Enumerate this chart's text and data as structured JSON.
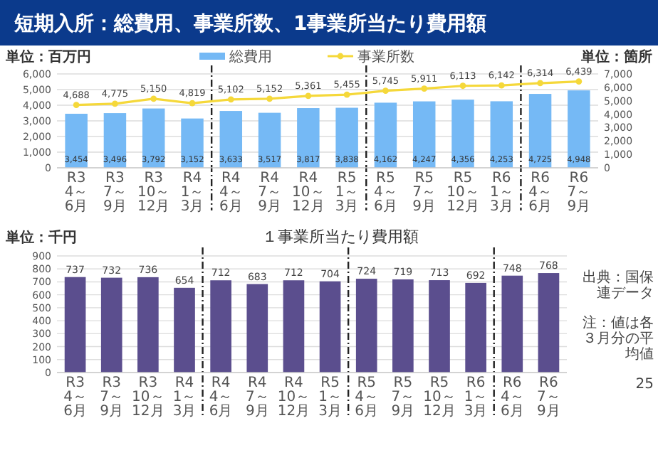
{
  "chart_data": [
    {
      "type": "bar",
      "title": "短期入所：総費用、事業所数、1事業所当たり費用額",
      "ylabel": "単位：百万円",
      "y2label": "単位：箇所",
      "categories": [
        "R3\n4～6月",
        "R3\n7～9月",
        "R3\n10～12月",
        "R4\n1～3月",
        "R4\n4～6月",
        "R4\n7～9月",
        "R4\n10～12月",
        "R5\n1～3月",
        "R5\n4～6月",
        "R5\n7～9月",
        "R5\n10～12月",
        "R6\n1～3月",
        "R6\n4～6月",
        "R6\n7～9月"
      ],
      "series": [
        {
          "name": "総費用",
          "color": "#75b9f5",
          "values": [
            3454,
            3496,
            3792,
            3152,
            3633,
            3517,
            3817,
            3838,
            4162,
            4247,
            4356,
            4253,
            4725,
            4948
          ],
          "value_labels": [
            "3,454",
            "3,496",
            "3,792",
            "3,152",
            "3,633",
            "3,517",
            "3,817",
            "3,838",
            "4,162",
            "4,247",
            "4,356",
            "4,253",
            "4,725",
            "4,948"
          ]
        },
        {
          "name": "事業所数",
          "type": "line",
          "axis": "y2",
          "color": "#f5d83a",
          "values": [
            4688,
            4775,
            5150,
            4819,
            5102,
            5152,
            5361,
            5455,
            5745,
            5911,
            6113,
            6142,
            6314,
            6439
          ],
          "value_labels": [
            "4,688",
            "4,775",
            "5,150",
            "4,819",
            "5,102",
            "5,152",
            "5,361",
            "5,455",
            "5,745",
            "5,911",
            "6,113",
            "6,142",
            "6,314",
            "6,439"
          ]
        }
      ],
      "ylim": [
        0,
        6000
      ],
      "yticks": [
        0,
        {
          "value": 1000,
          "label": "1,000"
        },
        {
          "value": 2000,
          "label": "2,000"
        },
        {
          "value": 3000,
          "label": "3,000"
        },
        {
          "value": 4000,
          "label": "4,000"
        },
        {
          "value": 5000,
          "label": "5,000"
        },
        {
          "value": 6000,
          "label": "6,000"
        }
      ],
      "y2lim": [
        0,
        7000
      ],
      "y2ticks": [
        0,
        {
          "value": 1000,
          "label": "1,000"
        },
        {
          "value": 2000,
          "label": "2,000"
        },
        {
          "value": 3000,
          "label": "3,000"
        },
        {
          "value": 4000,
          "label": "4,000"
        },
        {
          "value": 5000,
          "label": "5,000"
        },
        {
          "value": 6000,
          "label": "6,000"
        },
        {
          "value": 7000,
          "label": "7,000"
        }
      ],
      "grid": "y",
      "legend": "top",
      "marker": "circle"
    },
    {
      "type": "bar",
      "title": "１事業所当たり費用額",
      "ylabel": "単位：千円",
      "categories": [
        "R3\n4～6月",
        "R3\n7～9月",
        "R3\n10～12月",
        "R4\n1～3月",
        "R4\n4～6月",
        "R4\n7～9月",
        "R4\n10～12月",
        "R5\n1～3月",
        "R5\n4～6月",
        "R5\n7～9月",
        "R5\n10～12月",
        "R6\n1～3月",
        "R6\n4～6月",
        "R6\n7～9月"
      ],
      "values": [
        737,
        732,
        736,
        654,
        712,
        683,
        712,
        704,
        724,
        719,
        713,
        692,
        748,
        768
      ],
      "color": "#5b4e8e",
      "data_labels": true,
      "ylim": [
        0,
        900
      ],
      "yticks": [
        0,
        100,
        200,
        300,
        400,
        500,
        600,
        700,
        800,
        900
      ],
      "grid": "y",
      "annotations": [
        "出典：国保連データ",
        "注：値は各３月分の平均値",
        "25"
      ]
    }
  ]
}
